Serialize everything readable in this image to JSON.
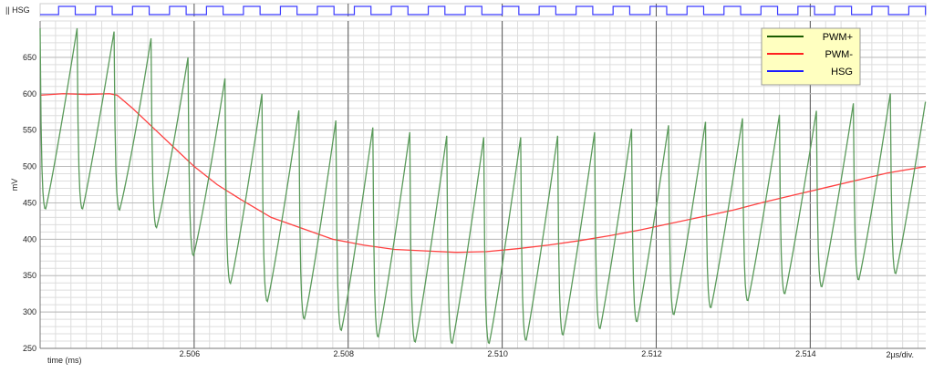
{
  "chart_data": {
    "type": "line",
    "xlabel": "time (ms)",
    "ylabel": "mV",
    "x_scale_label": "2µs/div.",
    "xlim": [
      2.504,
      2.5155
    ],
    "ylim": [
      250,
      700
    ],
    "x_ticks": [
      2.506,
      2.508,
      2.51,
      2.512,
      2.514
    ],
    "x_tick_labels": [
      "2.506",
      "2.508",
      "2.510",
      "2.512",
      "2.514"
    ],
    "y_ticks": [
      250,
      300,
      350,
      400,
      450,
      500,
      550,
      600,
      650
    ],
    "y_tick_labels": [
      "250",
      "300",
      "350",
      "400",
      "450",
      "500",
      "550",
      "600",
      "650"
    ],
    "grid": true,
    "legend_position": "top-right",
    "legend": [
      {
        "name": "PWM+",
        "color": "#1a5c00"
      },
      {
        "name": "PWM-",
        "color": "#ff2020"
      },
      {
        "name": "HSG",
        "color": "#1a1aff"
      }
    ],
    "digital_channel": {
      "name": "HSG",
      "label_prefix": "||",
      "color": "#3a3aff",
      "period_us": 0.48,
      "duty": 0.45
    },
    "series": [
      {
        "name": "PWM+",
        "color": "#5a9a5a",
        "style": "sawtooth",
        "period_ms": 0.00048,
        "x": [
          2.504,
          2.5045,
          2.505,
          2.5055,
          2.506,
          2.5065,
          2.507,
          2.5075,
          2.508,
          2.5085,
          2.509,
          2.5095,
          2.51,
          2.5105,
          2.511,
          2.5115,
          2.512,
          2.5125,
          2.513,
          2.5135,
          2.514,
          2.5145,
          2.515,
          2.5155
        ],
        "peaks": [
          690,
          690,
          685,
          675,
          645,
          615,
          595,
          570,
          560,
          550,
          545,
          540,
          540,
          540,
          545,
          550,
          555,
          560,
          565,
          570,
          575,
          585,
          600,
          605
        ],
        "troughs": [
          440,
          440,
          440,
          415,
          375,
          335,
          310,
          285,
          270,
          262,
          255,
          255,
          255,
          262,
          270,
          280,
          290,
          300,
          310,
          320,
          330,
          340,
          350,
          355
        ]
      },
      {
        "name": "PWM-",
        "color": "#ff4040",
        "x": [
          2.504,
          2.5043,
          2.5046,
          2.5049,
          2.505,
          2.5052,
          2.5055,
          2.5058,
          2.506,
          2.5063,
          2.5066,
          2.507,
          2.5074,
          2.5078,
          2.5082,
          2.5086,
          2.509,
          2.5094,
          2.5098,
          2.5102,
          2.5106,
          2.511,
          2.5114,
          2.5118,
          2.5122,
          2.5126,
          2.513,
          2.5134,
          2.5138,
          2.5142,
          2.5146,
          2.515,
          2.5155
        ],
        "values": [
          598,
          600,
          599,
          600,
          598,
          580,
          550,
          520,
          500,
          475,
          455,
          430,
          415,
          400,
          392,
          386,
          384,
          382,
          383,
          387,
          392,
          398,
          405,
          413,
          422,
          431,
          440,
          451,
          461,
          471,
          481,
          491,
          500
        ]
      }
    ]
  }
}
